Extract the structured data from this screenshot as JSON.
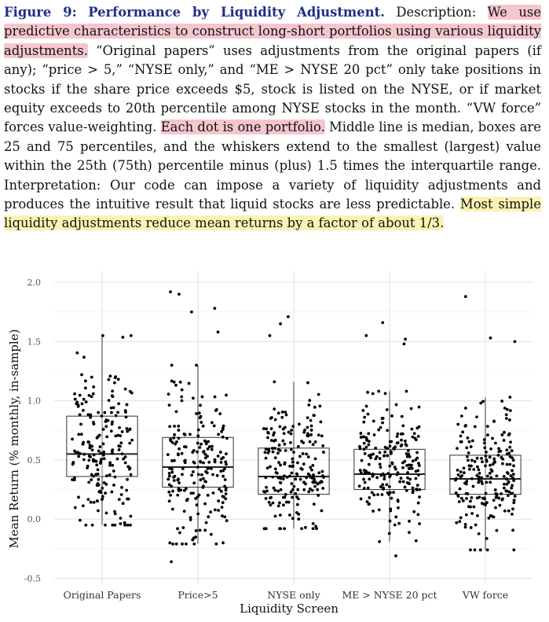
{
  "caption": {
    "figure_label": "Figure 9:",
    "figure_title": "Performance by Liquidity Adjustment.",
    "description_label": "Description:",
    "hl1": "We use predictive characteristics to construct long-short portfolios using various liquidity adjustments.",
    "text1": "“Original papers” uses adjustments from the original papers (if any); “price > 5,” “NYSE only,” and “ME > NYSE 20 pct” only take positions in stocks if the share price exceeds $5, stock is listed on the NYSE, or if market equity exceeds to 20th percentile among NYSE stocks in the month. “VW force” forces value-weighting.",
    "hl2": "Each dot is one portfolio.",
    "text2": "Middle line is median, boxes are 25 and 75 percentiles, and the whiskers extend to the smallest (largest) value within the 25th (75th) percentile minus (plus) 1.5 times the interquartile range. Interpretation: Our code can impose a variety of liquidity adjustments and produces the intuitive result that liquid stocks are less predictable.",
    "hl3": "Most simple liquidity adjustments reduce mean returns by a factor of about 1/3.",
    "colors": {
      "label": "#1f2f85",
      "pink_highlight": "#f6c6cf",
      "yellow_highlight": "#fbf3b3"
    }
  },
  "chart_data": {
    "type": "box",
    "xlabel": "Liquidity Screen",
    "ylabel": "Mean Return (% monthly, in-sample)",
    "ylim": [
      -0.55,
      2.1
    ],
    "yticks": [
      -0.5,
      0.0,
      0.5,
      1.0,
      1.5,
      2.0
    ],
    "ytick_labels": [
      "-0.5",
      "0.0",
      "0.5",
      "1.0",
      "1.5",
      "2.0"
    ],
    "grid": true,
    "categories": [
      "Original Papers",
      "Price>5",
      "NYSE only",
      "ME > NYSE 20 pct",
      "VW force"
    ],
    "boxes": [
      {
        "q1": 0.36,
        "median": 0.55,
        "q3": 0.87,
        "whisker_low": -0.05,
        "whisker_high": 1.55
      },
      {
        "q1": 0.27,
        "median": 0.44,
        "q3": 0.69,
        "whisker_low": -0.21,
        "whisker_high": 1.3
      },
      {
        "q1": 0.21,
        "median": 0.36,
        "q3": 0.6,
        "whisker_low": -0.08,
        "whisker_high": 1.16
      },
      {
        "q1": 0.25,
        "median": 0.38,
        "q3": 0.59,
        "whisker_low": -0.19,
        "whisker_high": 1.08
      },
      {
        "q1": 0.21,
        "median": 0.34,
        "q3": 0.54,
        "whisker_low": -0.26,
        "whisker_high": 1.03
      }
    ],
    "outliers": [
      [],
      [
        1.58,
        1.75,
        1.78,
        1.9,
        1.92,
        -0.36
      ],
      [
        1.55,
        1.65,
        1.71
      ],
      [
        1.48,
        1.52,
        1.55,
        1.66,
        -0.31
      ],
      [
        1.5,
        1.53,
        1.88
      ]
    ],
    "points_per_group": 205,
    "point_color": "#000000"
  }
}
